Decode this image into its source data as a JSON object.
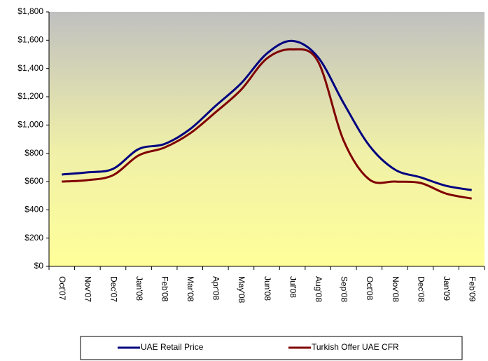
{
  "chart_data": {
    "type": "line",
    "categories": [
      "Oct'07",
      "Nov'07",
      "Dec'07",
      "Jan'08",
      "Feb'08",
      "Mar'08",
      "Apr'08",
      "May'08",
      "Jun'08",
      "Jul'08",
      "Aug'08",
      "Sep'08",
      "Oct'08",
      "Nov'08",
      "Dec'08",
      "Jan'09",
      "Feb'09"
    ],
    "series": [
      {
        "name": "UAE Retail Price",
        "color": "#000080",
        "values": [
          650,
          665,
          690,
          830,
          865,
          970,
          1135,
          1295,
          1505,
          1595,
          1480,
          1155,
          855,
          685,
          630,
          570,
          540
        ]
      },
      {
        "name": "Turkish Offer UAE CFR",
        "color": "#800000",
        "values": [
          600,
          610,
          645,
          785,
          840,
          940,
          1090,
          1250,
          1470,
          1535,
          1450,
          890,
          615,
          600,
          590,
          515,
          480
        ]
      }
    ],
    "ylim": [
      0,
      1800
    ],
    "yticks": [
      {
        "value": 0,
        "label": "$0"
      },
      {
        "value": 200,
        "label": "$200"
      },
      {
        "value": 400,
        "label": "$400"
      },
      {
        "value": 600,
        "label": "$600"
      },
      {
        "value": 800,
        "label": "$800"
      },
      {
        "value": 1000,
        "label": "$1,000"
      },
      {
        "value": 1200,
        "label": "$1,200"
      },
      {
        "value": 1400,
        "label": "$1,400"
      },
      {
        "value": 1600,
        "label": "$1,600"
      },
      {
        "value": 1800,
        "label": "$1,800"
      }
    ],
    "legend": "bottom"
  }
}
